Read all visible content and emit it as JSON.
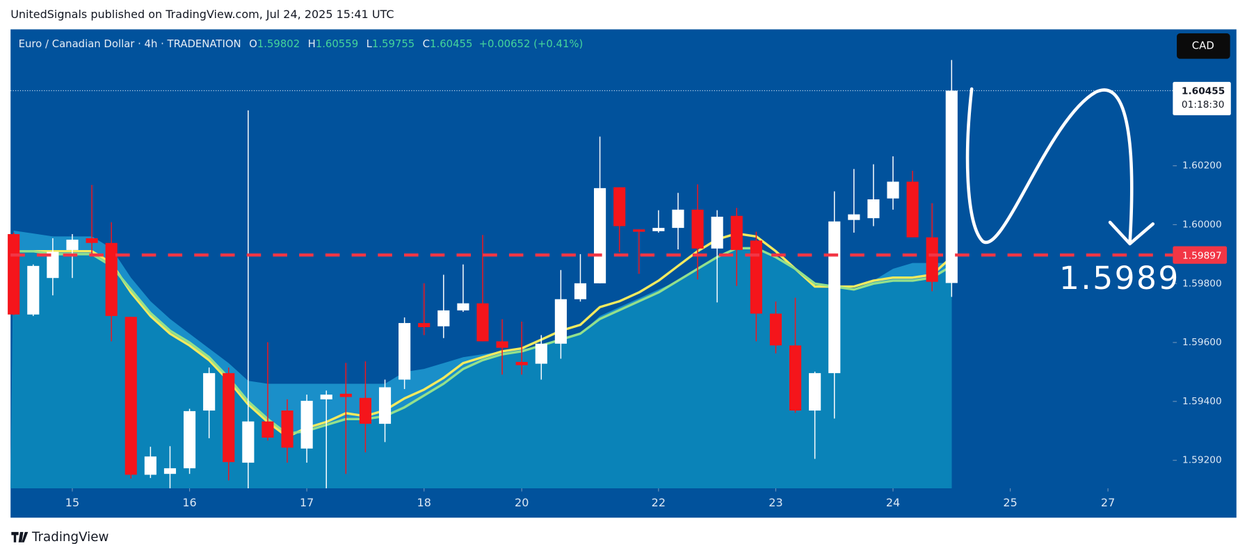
{
  "header": "UnitedSignals published on TradingView.com, Jul 24, 2025 15:41 UTC",
  "footer": "TradingView",
  "chart_data": {
    "type": "candlestick",
    "symbol": "Euro / Canadian Dollar · 4h · TRADENATION",
    "ohlc_labels": [
      "O",
      "H",
      "L",
      "C"
    ],
    "ohlc_values": [
      1.59802,
      1.60559,
      1.59755,
      1.60455
    ],
    "change": "+0.00652 (+0.41%)",
    "currency": "CAD",
    "open": [
      1.59968,
      1.59695,
      1.59819,
      1.59914,
      1.59954,
      1.59938,
      1.59687,
      1.59151,
      1.59154,
      1.59173,
      1.59369,
      1.59496,
      1.59192,
      1.59332,
      1.59369,
      1.5924,
      1.59407,
      1.59426,
      1.59412,
      1.59324,
      1.59474,
      1.59666,
      1.59655,
      1.59709,
      1.59733,
      1.59604,
      1.59534,
      1.59528,
      1.59596,
      1.59747,
      1.59801,
      1.60127,
      1.59984,
      1.59978,
      1.59989,
      1.60051,
      1.59919,
      1.6003,
      1.59946,
      1.59698,
      1.5959,
      1.59369,
      1.59496,
      1.60016,
      1.60022,
      1.60089,
      1.60146,
      1.59957,
      1.59802
    ],
    "high": [
      1.59973,
      1.59865,
      1.59954,
      1.59968,
      1.60135,
      1.60008,
      1.59687,
      1.59246,
      1.59248,
      1.59375,
      1.59515,
      1.59515,
      1.60388,
      1.59601,
      1.59407,
      1.59423,
      1.59437,
      1.59531,
      1.59536,
      1.59474,
      1.59685,
      1.59801,
      1.5983,
      1.59865,
      1.59965,
      1.59679,
      1.59671,
      1.59625,
      1.59846,
      1.599,
      1.60299,
      1.60127,
      1.59984,
      1.60049,
      1.60108,
      1.60137,
      1.60049,
      1.60057,
      1.59976,
      1.59739,
      1.59752,
      1.59501,
      1.60113,
      1.60189,
      1.60205,
      1.60232,
      1.60183,
      1.60073,
      1.60559
    ],
    "low": [
      1.59693,
      1.5969,
      1.5976,
      1.59819,
      1.599,
      1.59604,
      1.59138,
      1.5914,
      1.59105,
      1.59154,
      1.59275,
      1.59132,
      1.59105,
      1.59267,
      1.59192,
      1.59192,
      1.59105,
      1.59154,
      1.59227,
      1.59262,
      1.59442,
      1.59625,
      1.59615,
      1.59704,
      1.59604,
      1.59491,
      1.59491,
      1.59474,
      1.59545,
      1.59739,
      1.59801,
      1.59906,
      1.59833,
      1.59973,
      1.59916,
      1.59814,
      1.59736,
      1.59792,
      1.59604,
      1.59563,
      1.59361,
      1.59205,
      1.59342,
      1.59973,
      1.59995,
      1.60051,
      1.59957,
      1.59774,
      1.59755
    ],
    "close": [
      1.59695,
      1.5986,
      1.59908,
      1.59949,
      1.59938,
      1.5969,
      1.59151,
      1.59213,
      1.59173,
      1.59367,
      1.59496,
      1.59194,
      1.59332,
      1.59277,
      1.59243,
      1.59402,
      1.59423,
      1.59415,
      1.59324,
      1.59448,
      1.59666,
      1.59652,
      1.59709,
      1.59733,
      1.59604,
      1.59582,
      1.59523,
      1.59596,
      1.59747,
      1.59801,
      1.60124,
      1.59995,
      1.59976,
      1.59989,
      1.60051,
      1.59919,
      1.60027,
      1.59914,
      1.59698,
      1.5959,
      1.59369,
      1.59496,
      1.60011,
      1.60035,
      1.60086,
      1.60146,
      1.59957,
      1.59806,
      1.60455
    ],
    "up_color": "#ffffff",
    "down_color": "#f5151b",
    "band": {
      "color": "#1a8fc9",
      "values": [
        1.5998,
        1.5997,
        1.5996,
        1.5996,
        1.5996,
        1.5992,
        1.5982,
        1.5974,
        1.5968,
        1.5963,
        1.5958,
        1.5953,
        1.5947,
        1.5946,
        1.5946,
        1.5946,
        1.5946,
        1.5946,
        1.5946,
        1.5946,
        1.595,
        1.5951,
        1.5953,
        1.5955,
        1.5956,
        1.5957,
        1.5958,
        1.5958,
        1.596,
        1.5963,
        1.5969,
        1.5972,
        1.5975,
        1.5978,
        1.5981,
        1.5985,
        1.5989,
        1.5992,
        1.599,
        1.5982,
        1.5975,
        1.5971,
        1.5977,
        1.5978,
        1.5981,
        1.5985,
        1.5987,
        1.5987,
        1.5987
      ]
    },
    "overlays": [
      {
        "color": "#f3ea5f",
        "values": [
          1.5991,
          1.5991,
          1.5991,
          1.5991,
          1.5991,
          1.5987,
          1.5977,
          1.5969,
          1.5963,
          1.5959,
          1.5954,
          1.5947,
          1.5939,
          1.5933,
          1.5928,
          1.5931,
          1.5933,
          1.5936,
          1.5935,
          1.5937,
          1.5941,
          1.5944,
          1.5948,
          1.5953,
          1.5955,
          1.5957,
          1.5958,
          1.5961,
          1.5964,
          1.5966,
          1.5972,
          1.5974,
          1.5977,
          1.5981,
          1.5986,
          1.5991,
          1.5995,
          1.5997,
          1.5996,
          1.5991,
          1.5985,
          1.5979,
          1.5979,
          1.5979,
          1.5981,
          1.5982,
          1.5982,
          1.5983,
          1.5989
        ]
      },
      {
        "color": "#93e08c",
        "values": [
          1.5991,
          1.5991,
          1.599,
          1.599,
          1.599,
          1.5986,
          1.5978,
          1.597,
          1.5964,
          1.596,
          1.5955,
          1.5948,
          1.594,
          1.5934,
          1.5929,
          1.593,
          1.5932,
          1.5934,
          1.5934,
          1.5935,
          1.5938,
          1.5942,
          1.5946,
          1.5951,
          1.5954,
          1.5956,
          1.5957,
          1.5959,
          1.5961,
          1.5963,
          1.5968,
          1.5971,
          1.5974,
          1.5977,
          1.5981,
          1.5985,
          1.5989,
          1.5992,
          1.5992,
          1.5989,
          1.5985,
          1.598,
          1.5979,
          1.5978,
          1.598,
          1.5981,
          1.5981,
          1.5982,
          1.5986
        ]
      }
    ],
    "xlim": [
      -0.16,
      59.32
    ],
    "xticks": [
      {
        "value": 3,
        "label": "15"
      },
      {
        "value": 9,
        "label": "16"
      },
      {
        "value": 15,
        "label": "17"
      },
      {
        "value": 21,
        "label": "18"
      },
      {
        "value": 26,
        "label": "20"
      },
      {
        "value": 33,
        "label": "22"
      },
      {
        "value": 39,
        "label": "23"
      },
      {
        "value": 45,
        "label": "24"
      },
      {
        "value": 51,
        "label": "25"
      },
      {
        "value": 56,
        "label": "27"
      }
    ],
    "ylim": [
      1.59105,
      1.60663
    ],
    "yticks": [
      {
        "value": 1.592,
        "label": "1.59200"
      },
      {
        "value": 1.594,
        "label": "1.59400"
      },
      {
        "value": 1.596,
        "label": "1.59600"
      },
      {
        "value": 1.598,
        "label": "1.59800"
      },
      {
        "value": 1.6,
        "label": "1.60000"
      },
      {
        "value": 1.602,
        "label": "1.60200"
      }
    ],
    "last_price": {
      "value": 1.60455,
      "countdown": "01:18:30"
    },
    "level": {
      "value": 1.59897,
      "color": "#f23645"
    },
    "annotation": "1.5989"
  }
}
